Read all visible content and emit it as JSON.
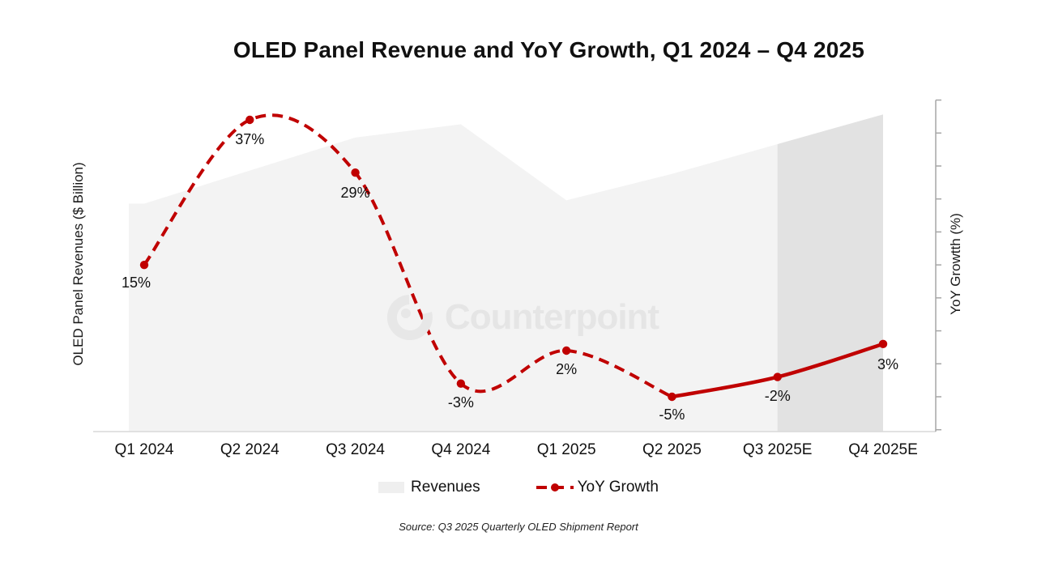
{
  "page": {
    "background": "#ffffff"
  },
  "chart": {
    "title": "OLED Panel Revenue and YoY Growth, Q1 2024 – Q4 2025",
    "left_axis": {
      "label": "OLED Panel Revenues ($ Billion)",
      "tick_labels_visible": false
    },
    "right_axis": {
      "label": "YoY Growtth (%)",
      "tick_labels_visible": false
    }
  },
  "chart_data": {
    "type": "combo",
    "title": "OLED Panel Revenue and YoY Growth, Q1 2024 – Q4 2025",
    "categories": [
      "Q1 2024",
      "Q2 2024",
      "Q3 2024",
      "Q4 2024",
      "Q1 2025",
      "Q2 2025",
      "Q3 2025E",
      "Q4 2025E"
    ],
    "series": [
      {
        "name": "Revenues",
        "type": "area",
        "axis": "left",
        "unit": "$ Billion (axis tick values not shown)",
        "relative_values": [
          69,
          79,
          89,
          93,
          70,
          78,
          87,
          96
        ]
      },
      {
        "name": "YoY Growth",
        "type": "line",
        "axis": "right",
        "unit": "%",
        "values": [
          15,
          37,
          29,
          -3,
          2,
          -5,
          -2,
          3
        ],
        "point_labels": [
          "15%",
          "37%",
          "29%",
          "-3%",
          "2%",
          "-5%",
          "-2%",
          "3%"
        ],
        "line_style": {
          "historical": "dashed",
          "forecast": "solid",
          "solid_from_category": "Q2 2025"
        }
      }
    ],
    "forecast_highlight": {
      "from_category": "Q3 2025E",
      "to_category": "Q4 2025E"
    },
    "right_axis_estimated_range_pct": [
      -10,
      40
    ],
    "right_axis_tick_step_pct": 5,
    "grid": "off",
    "legend_position": "bottom"
  },
  "legend": {
    "items": [
      {
        "label": "Revenues"
      },
      {
        "label": "YoY Growth"
      }
    ]
  },
  "watermark": {
    "text": "Counterpoint"
  },
  "source": "Source: Q3 2025 Quarterly OLED Shipment Report",
  "colors": {
    "accent_red": "#c00000",
    "area_fill": "#f3f3f3",
    "forecast_fill": "#e2e2e2",
    "axis_line": "#d9d9d9",
    "tick": "#a6a6a6",
    "watermark": "#e5e5e5",
    "text": "#111111"
  }
}
